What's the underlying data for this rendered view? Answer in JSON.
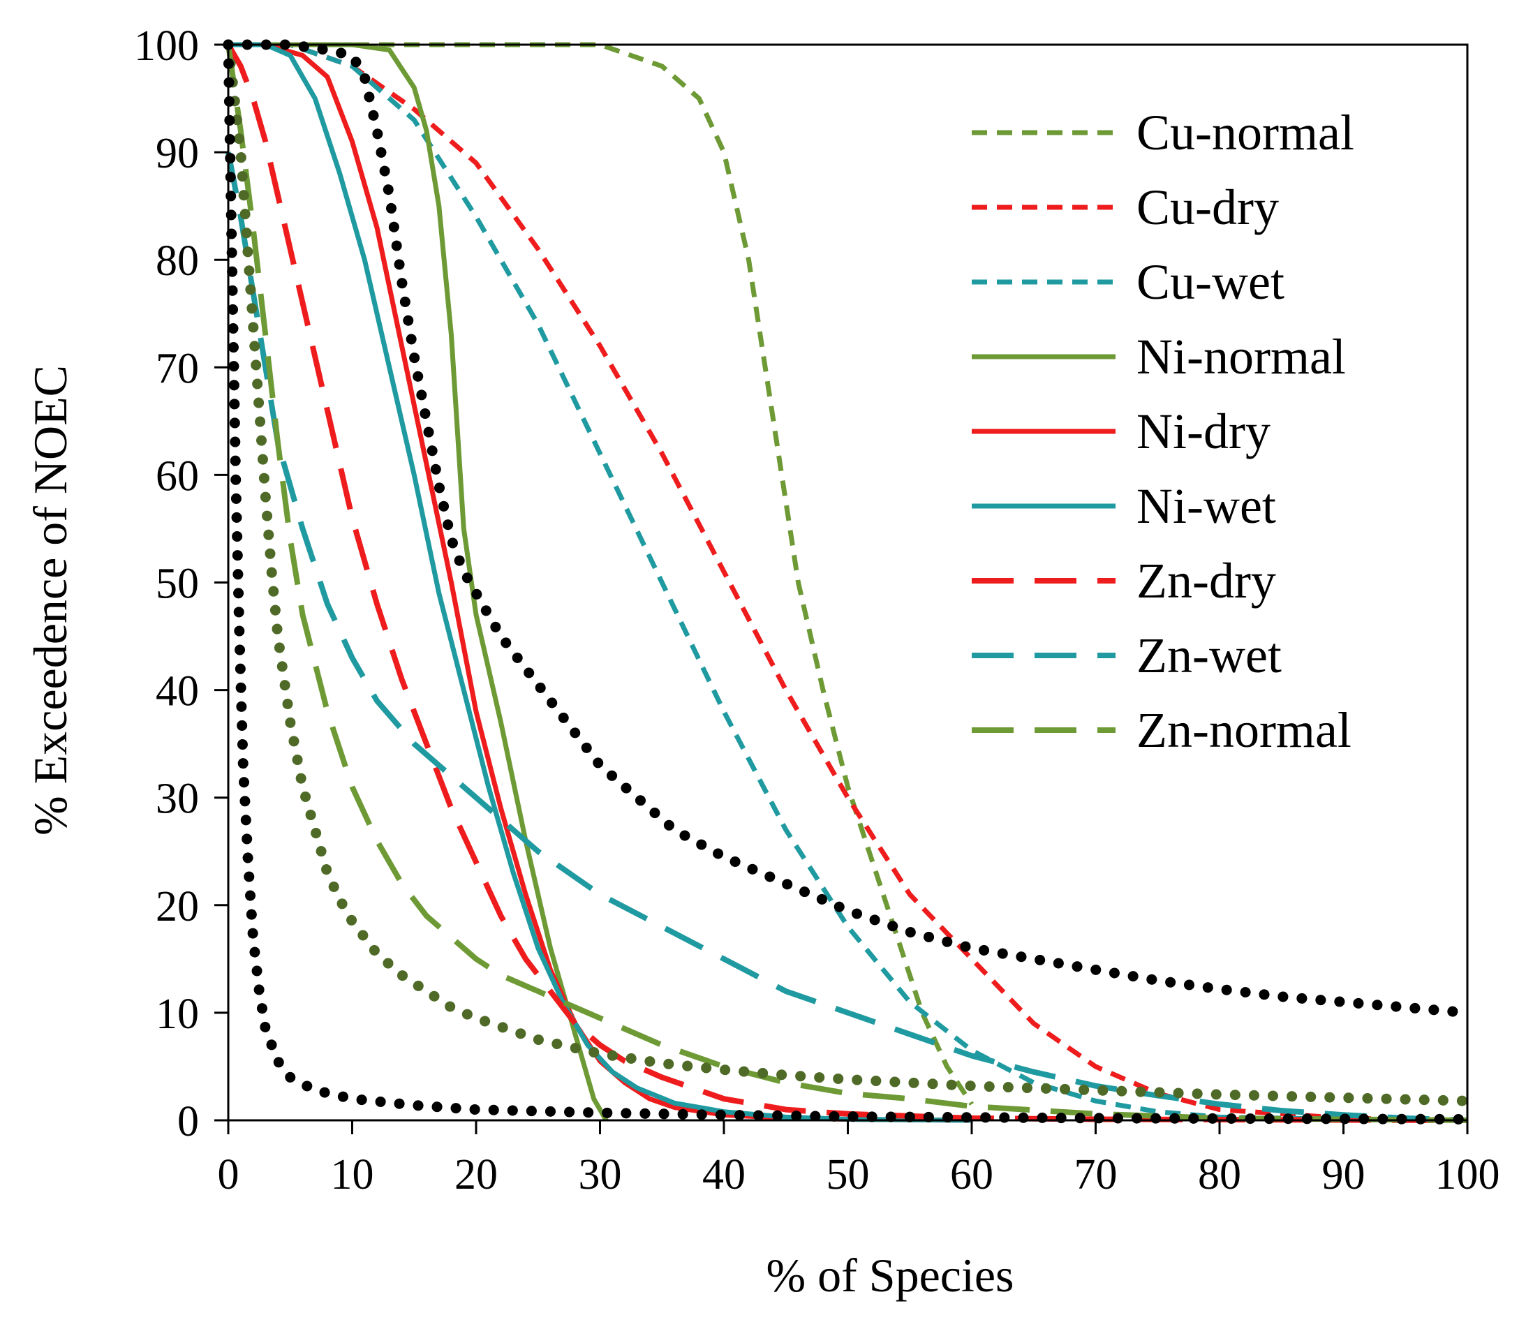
{
  "chart_data": {
    "type": "line",
    "title": "",
    "xlabel": "% of Species",
    "ylabel": "% Exceedence of  NOEC",
    "xlim": [
      0,
      100
    ],
    "ylim": [
      0,
      100
    ],
    "x_ticks": [
      0,
      10,
      20,
      30,
      40,
      50,
      60,
      70,
      80,
      90,
      100
    ],
    "y_ticks": [
      0,
      10,
      20,
      30,
      40,
      50,
      60,
      70,
      80,
      90,
      100
    ],
    "grid": false,
    "legend_position": "right",
    "series": [
      {
        "name": "Cu-normal",
        "legend": true,
        "color": "#6e9a36",
        "style": "short-dash",
        "points": [
          [
            0,
            100
          ],
          [
            10,
            100
          ],
          [
            20,
            100
          ],
          [
            30,
            100
          ],
          [
            35,
            98
          ],
          [
            38,
            95
          ],
          [
            40,
            90
          ],
          [
            42,
            80
          ],
          [
            44,
            65
          ],
          [
            46,
            50
          ],
          [
            48,
            40
          ],
          [
            50,
            31
          ],
          [
            52,
            24
          ],
          [
            54,
            17
          ],
          [
            56,
            10
          ],
          [
            58,
            5
          ],
          [
            60,
            1.5
          ]
        ]
      },
      {
        "name": "Cu-dry",
        "legend": true,
        "color": "#ee1c1c",
        "style": "short-dash",
        "points": [
          [
            0,
            100
          ],
          [
            5,
            100
          ],
          [
            10,
            98
          ],
          [
            15,
            94
          ],
          [
            20,
            89
          ],
          [
            25,
            81
          ],
          [
            30,
            72
          ],
          [
            35,
            62
          ],
          [
            40,
            51
          ],
          [
            45,
            40
          ],
          [
            50,
            30
          ],
          [
            55,
            21
          ],
          [
            60,
            15
          ],
          [
            65,
            9
          ],
          [
            70,
            5
          ],
          [
            75,
            2.5
          ],
          [
            80,
            1
          ],
          [
            90,
            0.2
          ],
          [
            100,
            0
          ]
        ]
      },
      {
        "name": "Cu-wet",
        "legend": true,
        "color": "#1f9aa0",
        "style": "short-dash",
        "points": [
          [
            0,
            100
          ],
          [
            5,
            100
          ],
          [
            10,
            98
          ],
          [
            15,
            93
          ],
          [
            20,
            84
          ],
          [
            25,
            74
          ],
          [
            30,
            62
          ],
          [
            35,
            50
          ],
          [
            40,
            38
          ],
          [
            45,
            27
          ],
          [
            50,
            18
          ],
          [
            55,
            11
          ],
          [
            60,
            6.5
          ],
          [
            65,
            3.5
          ],
          [
            70,
            1.8
          ],
          [
            75,
            0.8
          ],
          [
            80,
            0.3
          ],
          [
            90,
            0.1
          ],
          [
            100,
            0
          ]
        ]
      },
      {
        "name": "Ni-normal",
        "legend": true,
        "color": "#6e9a36",
        "style": "solid",
        "points": [
          [
            0,
            100
          ],
          [
            10,
            100
          ],
          [
            13,
            99.5
          ],
          [
            15,
            96
          ],
          [
            16,
            92
          ],
          [
            17,
            85
          ],
          [
            18,
            73
          ],
          [
            19,
            55
          ],
          [
            20,
            47
          ],
          [
            22,
            37
          ],
          [
            24,
            26
          ],
          [
            26,
            16
          ],
          [
            28,
            8
          ],
          [
            29.5,
            2
          ],
          [
            30.5,
            0
          ]
        ]
      },
      {
        "name": "Ni-dry",
        "legend": true,
        "color": "#ee1c1c",
        "style": "solid",
        "points": [
          [
            0,
            100
          ],
          [
            3,
            100
          ],
          [
            6,
            99
          ],
          [
            8,
            97
          ],
          [
            10,
            91
          ],
          [
            12,
            83
          ],
          [
            14,
            72
          ],
          [
            16,
            61
          ],
          [
            18,
            50
          ],
          [
            20,
            38
          ],
          [
            22,
            29
          ],
          [
            24,
            21
          ],
          [
            26,
            14
          ],
          [
            28,
            9
          ],
          [
            30,
            5.5
          ],
          [
            32,
            3.5
          ],
          [
            34,
            2
          ],
          [
            36,
            1.2
          ],
          [
            40,
            0.5
          ],
          [
            45,
            0.2
          ],
          [
            50,
            0.1
          ],
          [
            60,
            0
          ]
        ]
      },
      {
        "name": "Ni-wet",
        "legend": true,
        "color": "#1f9aa0",
        "style": "solid",
        "points": [
          [
            0,
            100
          ],
          [
            3,
            100
          ],
          [
            5,
            99
          ],
          [
            7,
            95
          ],
          [
            9,
            88
          ],
          [
            11,
            80
          ],
          [
            13,
            70
          ],
          [
            15,
            60
          ],
          [
            17,
            49
          ],
          [
            19,
            40
          ],
          [
            21,
            31
          ],
          [
            23,
            23
          ],
          [
            25,
            16
          ],
          [
            27,
            11
          ],
          [
            29,
            7
          ],
          [
            31,
            4.5
          ],
          [
            33,
            3
          ],
          [
            36,
            1.6
          ],
          [
            40,
            0.8
          ],
          [
            45,
            0.3
          ],
          [
            50,
            0.1
          ],
          [
            60,
            0
          ]
        ]
      },
      {
        "name": "Zn-dry",
        "legend": true,
        "color": "#ee1c1c",
        "style": "long-dash",
        "points": [
          [
            0,
            100
          ],
          [
            1,
            98
          ],
          [
            2,
            95
          ],
          [
            3,
            91
          ],
          [
            4,
            86
          ],
          [
            6,
            76
          ],
          [
            8,
            66
          ],
          [
            10,
            56
          ],
          [
            12,
            48
          ],
          [
            14,
            41
          ],
          [
            16,
            35
          ],
          [
            18,
            29
          ],
          [
            20,
            24
          ],
          [
            22,
            19
          ],
          [
            24,
            15
          ],
          [
            26,
            12
          ],
          [
            28,
            9
          ],
          [
            30,
            7
          ],
          [
            32,
            5.5
          ],
          [
            35,
            4
          ],
          [
            40,
            2
          ],
          [
            45,
            1
          ],
          [
            50,
            0.6
          ],
          [
            60,
            0.2
          ],
          [
            70,
            0.1
          ],
          [
            100,
            0
          ]
        ]
      },
      {
        "name": "Zn-wet",
        "legend": true,
        "color": "#1f9aa0",
        "style": "long-dash",
        "points": [
          [
            0,
            90
          ],
          [
            1,
            84
          ],
          [
            2,
            77
          ],
          [
            3,
            70
          ],
          [
            4,
            63
          ],
          [
            6,
            55
          ],
          [
            8,
            48
          ],
          [
            10,
            43
          ],
          [
            12,
            39
          ],
          [
            15,
            35
          ],
          [
            20,
            30
          ],
          [
            25,
            25
          ],
          [
            30,
            21
          ],
          [
            35,
            18
          ],
          [
            40,
            15
          ],
          [
            45,
            12
          ],
          [
            50,
            10
          ],
          [
            55,
            8
          ],
          [
            60,
            6
          ],
          [
            65,
            4.5
          ],
          [
            70,
            3.2
          ],
          [
            75,
            2.3
          ],
          [
            80,
            1.5
          ],
          [
            85,
            0.9
          ],
          [
            90,
            0.5
          ],
          [
            95,
            0.2
          ],
          [
            100,
            0
          ]
        ]
      },
      {
        "name": "Zn-normal",
        "legend": true,
        "color": "#6e9a36",
        "style": "long-dash",
        "points": [
          [
            0,
            100
          ],
          [
            1,
            92
          ],
          [
            2,
            83
          ],
          [
            3,
            73
          ],
          [
            4,
            63
          ],
          [
            5,
            54
          ],
          [
            6,
            47
          ],
          [
            8,
            38
          ],
          [
            10,
            31
          ],
          [
            12,
            26
          ],
          [
            14,
            22
          ],
          [
            16,
            19
          ],
          [
            18,
            17
          ],
          [
            20,
            15
          ],
          [
            22,
            13.5
          ],
          [
            25,
            12
          ],
          [
            30,
            9.5
          ],
          [
            35,
            7
          ],
          [
            40,
            5
          ],
          [
            45,
            3.5
          ],
          [
            50,
            2.5
          ],
          [
            55,
            2
          ],
          [
            60,
            1.3
          ],
          [
            70,
            0.6
          ],
          [
            80,
            0.2
          ],
          [
            90,
            0.1
          ],
          [
            100,
            0
          ]
        ]
      },
      {
        "name": "",
        "legend": false,
        "color": "#4e6a26",
        "style": "dot-large",
        "points": [
          [
            0,
            100
          ],
          [
            0.5,
            95
          ],
          [
            1,
            90
          ],
          [
            1.5,
            82
          ],
          [
            2,
            74
          ],
          [
            2.5,
            66
          ],
          [
            3,
            58
          ],
          [
            3.5,
            51
          ],
          [
            4,
            45
          ],
          [
            5,
            37
          ],
          [
            6,
            31
          ],
          [
            7,
            27
          ],
          [
            8,
            23
          ],
          [
            9,
            20.5
          ],
          [
            10,
            18.5
          ],
          [
            12,
            15.5
          ],
          [
            14,
            13.5
          ],
          [
            16,
            12
          ],
          [
            18,
            10.5
          ],
          [
            20,
            9.5
          ],
          [
            25,
            7.5
          ],
          [
            30,
            6.2
          ],
          [
            35,
            5.3
          ],
          [
            40,
            4.7
          ],
          [
            45,
            4.2
          ],
          [
            50,
            3.8
          ],
          [
            60,
            3.2
          ],
          [
            70,
            2.8
          ],
          [
            80,
            2.4
          ],
          [
            90,
            2.1
          ],
          [
            100,
            1.8
          ]
        ]
      },
      {
        "name": "",
        "legend": false,
        "color": "#000000",
        "style": "dot-large",
        "points": [
          [
            0,
            100
          ],
          [
            0.3,
            80
          ],
          [
            0.6,
            60
          ],
          [
            0.9,
            45
          ],
          [
            1.2,
            33
          ],
          [
            1.6,
            24
          ],
          [
            2,
            17
          ],
          [
            2.5,
            12
          ],
          [
            3,
            8.5
          ],
          [
            4,
            5.5
          ],
          [
            5,
            4
          ],
          [
            7,
            2.8
          ],
          [
            10,
            2
          ],
          [
            15,
            1.4
          ],
          [
            20,
            1
          ],
          [
            30,
            0.7
          ],
          [
            40,
            0.5
          ],
          [
            50,
            0.35
          ],
          [
            70,
            0.2
          ],
          [
            100,
            0.1
          ]
        ]
      },
      {
        "name": "",
        "legend": false,
        "color": "#000000",
        "style": "dot-large",
        "points": [
          [
            0,
            100
          ],
          [
            5,
            100
          ],
          [
            8,
            99.5
          ],
          [
            10,
            99
          ],
          [
            11,
            97
          ],
          [
            12,
            92
          ],
          [
            13,
            86
          ],
          [
            14,
            78
          ],
          [
            15,
            71
          ],
          [
            16,
            65
          ],
          [
            17,
            59
          ],
          [
            18,
            54
          ],
          [
            19,
            51
          ],
          [
            20,
            49
          ],
          [
            22,
            45
          ],
          [
            24,
            42
          ],
          [
            26,
            39
          ],
          [
            28,
            36
          ],
          [
            30,
            33
          ],
          [
            33,
            30
          ],
          [
            36,
            27
          ],
          [
            40,
            24.5
          ],
          [
            45,
            22
          ],
          [
            50,
            19.5
          ],
          [
            55,
            17.5
          ],
          [
            60,
            16
          ],
          [
            65,
            15
          ],
          [
            70,
            14
          ],
          [
            75,
            13
          ],
          [
            80,
            12.2
          ],
          [
            85,
            11.5
          ],
          [
            90,
            11
          ],
          [
            95,
            10.5
          ],
          [
            100,
            10
          ]
        ]
      }
    ]
  }
}
